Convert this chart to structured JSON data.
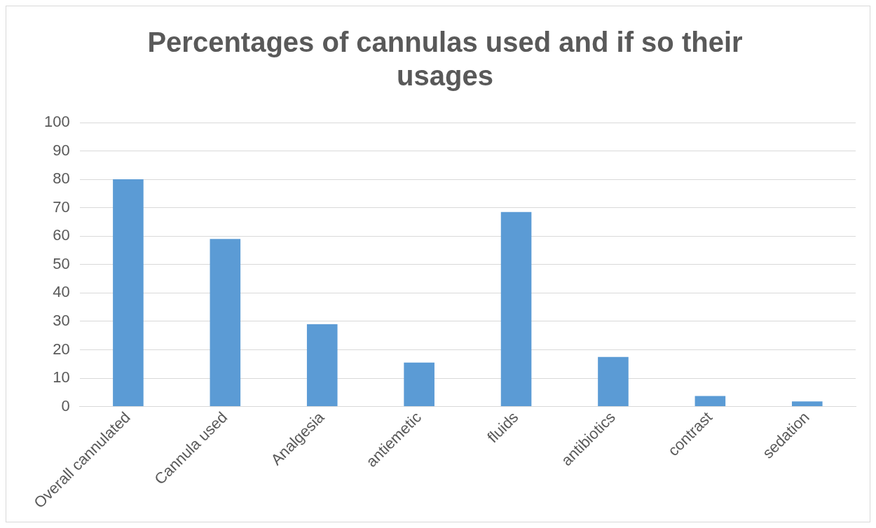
{
  "chart_data": {
    "type": "bar",
    "title": "Percentages of cannulas used and if so their usages",
    "categories": [
      "Overall cannulated",
      "Cannula used",
      "Analgesia",
      "antiemetic",
      "fluids",
      "antibiotics",
      "contrast",
      "sedation"
    ],
    "values": [
      80,
      59,
      29,
      15.5,
      68.5,
      17.5,
      3.7,
      1.8
    ],
    "color": "#5b9bd5",
    "ylim": [
      0,
      100
    ],
    "yticks": [
      0,
      10,
      20,
      30,
      40,
      50,
      60,
      70,
      80,
      90,
      100
    ],
    "grid": "y",
    "legend": false
  }
}
